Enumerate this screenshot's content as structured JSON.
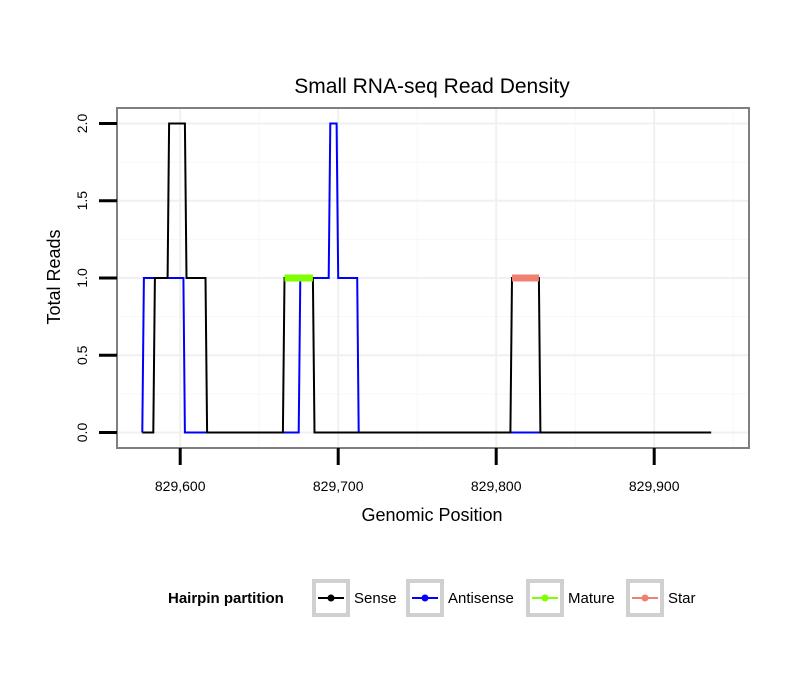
{
  "chart_data": {
    "type": "line",
    "title": "Small RNA-seq Read Density",
    "xlabel": "Genomic Position",
    "ylabel": "Total Reads",
    "xlim": [
      829560,
      829960
    ],
    "ylim": [
      -0.1,
      2.1
    ],
    "x_ticks": [
      829600,
      829700,
      829800,
      829900
    ],
    "x_tick_labels": [
      "829,600",
      "829,700",
      "829,800",
      "829,900"
    ],
    "y_ticks": [
      0,
      0.5,
      1,
      1.5,
      2
    ],
    "y_tick_labels": [
      "0.0",
      "0.5",
      "1.0",
      "1.5",
      "2.0"
    ],
    "grid": true,
    "legend_position": "bottom",
    "legend_title": "Hairpin partition",
    "series": [
      {
        "name": "Antisense",
        "color": "#0000ff",
        "x": [
          829576,
          829577,
          829592,
          829602,
          829603,
          829620,
          829621,
          829675,
          829676,
          829688,
          829694,
          829695,
          829699,
          829700,
          829712,
          829713,
          829745,
          829810,
          829811,
          829828,
          829829,
          829936
        ],
        "y": [
          0,
          1,
          1,
          1,
          0,
          0,
          0,
          0,
          1,
          1,
          1,
          2,
          2,
          1,
          1,
          0,
          0,
          0,
          0,
          0,
          0,
          0
        ]
      },
      {
        "name": "Sense",
        "color": "#000000",
        "x": [
          829576,
          829583,
          829584,
          829592,
          829593,
          829603,
          829604,
          829616,
          829617,
          829665,
          829666,
          829684,
          829685,
          829745,
          829809,
          829810,
          829827,
          829828,
          829936
        ],
        "y": [
          0,
          0,
          1,
          1,
          2,
          2,
          1,
          1,
          0,
          0,
          1,
          1,
          0,
          0,
          0,
          1,
          1,
          0,
          0
        ]
      },
      {
        "name": "Mature",
        "color": "#7fff00",
        "x": [
          829666,
          829684
        ],
        "y": [
          1,
          1
        ]
      },
      {
        "name": "Star",
        "color": "#f08070",
        "x": [
          829810,
          829827
        ],
        "y": [
          1,
          1
        ]
      }
    ],
    "legend_items": [
      {
        "label": "Sense",
        "color": "#000000"
      },
      {
        "label": "Antisense",
        "color": "#0000ff"
      },
      {
        "label": "Mature",
        "color": "#7fff00"
      },
      {
        "label": "Star",
        "color": "#f08070"
      }
    ]
  }
}
